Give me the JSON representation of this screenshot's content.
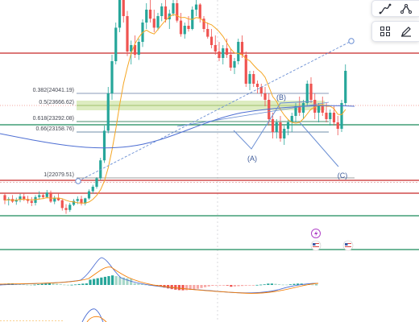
{
  "chart_data": {
    "type": "candlestick",
    "fib_levels": [
      {
        "ratio": 0.382,
        "price": 24041.19,
        "label": "0.382(24041.19)"
      },
      {
        "ratio": 0.5,
        "price": 23666.62,
        "label": "0.5(23666.62)"
      },
      {
        "ratio": 0.618,
        "price": 23292.08,
        "label": "0.618(23292.08)"
      },
      {
        "ratio": 0.66,
        "price": 23158.76,
        "label": "0.66(23158.76)"
      },
      {
        "ratio": 1,
        "price": 22079.51,
        "label": "1(22079.51)"
      }
    ],
    "wave_labels": [
      "(A)",
      "(B)",
      "(C)"
    ],
    "candles": [
      [
        22020,
        22060,
        21880,
        21940
      ],
      [
        21940,
        21990,
        21860,
        21960
      ],
      [
        21960,
        22020,
        21900,
        21920
      ],
      [
        21920,
        21980,
        21870,
        21950
      ],
      [
        21950,
        22040,
        21910,
        22000
      ],
      [
        22000,
        22050,
        21930,
        21960
      ],
      [
        21960,
        22010,
        21890,
        21930
      ],
      [
        21930,
        21990,
        21850,
        21900
      ],
      [
        21900,
        22020,
        21860,
        21990
      ],
      [
        21990,
        22080,
        21950,
        22020
      ],
      [
        22020,
        22060,
        21960,
        21990
      ],
      [
        21990,
        22100,
        21970,
        22060
      ],
      [
        22060,
        22090,
        21900,
        21920
      ],
      [
        21920,
        22010,
        21880,
        21980
      ],
      [
        21980,
        22050,
        21930,
        21940
      ],
      [
        21940,
        21960,
        21780,
        21820
      ],
      [
        21820,
        21880,
        21730,
        21790
      ],
      [
        21790,
        21900,
        21760,
        21870
      ],
      [
        21870,
        21960,
        21850,
        21930
      ],
      [
        21930,
        22000,
        21880,
        21960
      ],
      [
        21960,
        22010,
        21860,
        21890
      ],
      [
        21890,
        21980,
        21860,
        21970
      ],
      [
        21970,
        22110,
        21950,
        22080
      ],
      [
        22080,
        22180,
        22040,
        22150
      ],
      [
        22150,
        22300,
        22120,
        22280
      ],
      [
        22280,
        22600,
        22250,
        22560
      ],
      [
        22560,
        23100,
        22520,
        23020
      ],
      [
        23020,
        23700,
        22980,
        23600
      ],
      [
        23600,
        24200,
        23500,
        24100
      ],
      [
        24100,
        24700,
        24050,
        24620
      ],
      [
        24620,
        25150,
        24550,
        25050
      ],
      [
        25050,
        25320,
        24700,
        24800
      ],
      [
        24800,
        24880,
        24180,
        24250
      ],
      [
        24250,
        24420,
        24050,
        24350
      ],
      [
        24350,
        24500,
        24150,
        24200
      ],
      [
        24200,
        24450,
        24120,
        24400
      ],
      [
        24400,
        24750,
        24320,
        24700
      ],
      [
        24700,
        25000,
        24600,
        24900
      ],
      [
        24900,
        25100,
        24700,
        24760
      ],
      [
        24760,
        24900,
        24550,
        24620
      ],
      [
        24620,
        24850,
        24580,
        24800
      ],
      [
        24800,
        25000,
        24720,
        24950
      ],
      [
        24950,
        25050,
        24700,
        24750
      ],
      [
        24750,
        24900,
        24600,
        24840
      ],
      [
        24840,
        25050,
        24800,
        25000
      ],
      [
        25000,
        25100,
        24700,
        24730
      ],
      [
        24730,
        24850,
        24480,
        24520
      ],
      [
        24520,
        24700,
        24450,
        24650
      ],
      [
        24650,
        24800,
        24560,
        24600
      ],
      [
        24600,
        24950,
        24580,
        24900
      ],
      [
        24900,
        25050,
        24800,
        24980
      ],
      [
        24980,
        25000,
        24700,
        24760
      ],
      [
        24760,
        24800,
        24550,
        24600
      ],
      [
        24600,
        24700,
        24450,
        24480
      ],
      [
        24480,
        24600,
        24300,
        24350
      ],
      [
        24350,
        24500,
        24200,
        24250
      ],
      [
        24250,
        24400,
        24100,
        24150
      ],
      [
        24150,
        24350,
        24050,
        24300
      ],
      [
        24300,
        24450,
        24150,
        24200
      ],
      [
        24200,
        24300,
        23950,
        24000
      ],
      [
        24000,
        24150,
        23900,
        24100
      ],
      [
        24100,
        24450,
        24050,
        24400
      ],
      [
        24400,
        24500,
        24150,
        24200
      ],
      [
        24200,
        24250,
        23700,
        23750
      ],
      [
        23750,
        23950,
        23650,
        23900
      ],
      [
        23900,
        23950,
        23700,
        23750
      ],
      [
        23750,
        23800,
        23600,
        23700
      ],
      [
        23700,
        23750,
        23550,
        23600
      ],
      [
        23600,
        23700,
        23400,
        23500
      ],
      [
        23500,
        23600,
        23100,
        23200
      ],
      [
        23200,
        23300,
        22900,
        23000
      ],
      [
        23000,
        23200,
        22900,
        23150
      ],
      [
        23150,
        23250,
        22850,
        22900
      ],
      [
        22900,
        23100,
        22800,
        23050
      ],
      [
        23050,
        23200,
        22950,
        23150
      ],
      [
        23150,
        23300,
        23000,
        23250
      ],
      [
        23250,
        23450,
        23150,
        23400
      ],
      [
        23400,
        23550,
        23250,
        23300
      ],
      [
        23300,
        23500,
        23200,
        23450
      ],
      [
        23450,
        23800,
        23400,
        23750
      ],
      [
        23750,
        23850,
        23450,
        23500
      ],
      [
        23500,
        23600,
        23200,
        23300
      ],
      [
        23300,
        23450,
        23150,
        23400
      ],
      [
        23400,
        23550,
        23250,
        23300
      ],
      [
        23300,
        23450,
        23150,
        23200
      ],
      [
        23200,
        23350,
        23100,
        23300
      ],
      [
        23300,
        23400,
        23100,
        23150
      ],
      [
        23150,
        23250,
        22950,
        23050
      ],
      [
        23050,
        23500,
        23000,
        23450
      ],
      [
        23450,
        24050,
        23400,
        23950
      ]
    ]
  },
  "toolbar": {
    "panel1_icons": [
      "pen-curve-icon",
      "network-nodes-icon"
    ],
    "panel2_icons": [
      "object-tree-icon",
      "pencil-icon"
    ]
  },
  "events": {
    "icons": [
      "lightning-event-icon",
      "us-flag-event-icon",
      "us-flag-event-icon-2"
    ]
  },
  "colors": {
    "up": "#26a69a",
    "down": "#ef5350",
    "red_level": "#c62828",
    "green_level": "#1b8a5a",
    "fib_zone_fill": "#d7e9b6",
    "ma_blue": "#4d6ed3",
    "ma_orange": "#f5a623",
    "wave_line": "#6b8fd4"
  }
}
